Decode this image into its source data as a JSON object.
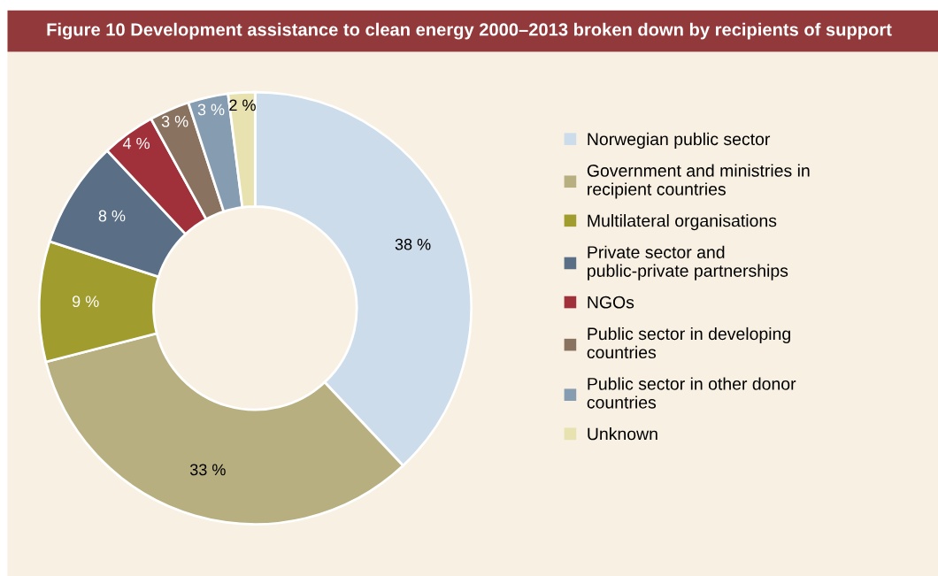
{
  "chart_data": {
    "type": "donut",
    "title": "Figure 10 Development assistance to clean energy 2000–2013 broken down by recipients of support",
    "categories": [
      "Norwegian public sector",
      "Government and ministries in recipient countries",
      "Multilateral organisations",
      "Private sector and public-private partnerships",
      "NGOs",
      "Public sector in developing countries",
      "Public sector in other donor countries",
      "Unknown"
    ],
    "values": [
      38,
      33,
      9,
      8,
      4,
      3,
      3,
      2
    ],
    "colors": [
      "#cddcea",
      "#b8af80",
      "#a09c2e",
      "#5a6e85",
      "#a0303a",
      "#8a7260",
      "#869cb0",
      "#e8e2b0"
    ],
    "value_labels": [
      "38 %",
      "33 %",
      "9 %",
      "8 %",
      "4 %",
      "3 %",
      "3 %",
      "2 %"
    ],
    "legend": "right"
  }
}
